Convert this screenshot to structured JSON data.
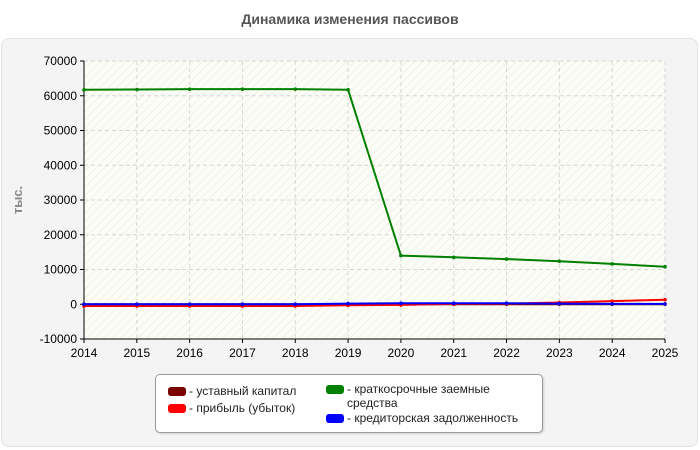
{
  "chart_data": {
    "type": "line",
    "title": "Динамика изменения пассивов",
    "ylabel": "тыс.",
    "xlabel": "",
    "x": [
      2014,
      2015,
      2016,
      2017,
      2018,
      2019,
      2020,
      2021,
      2022,
      2023,
      2024,
      2025
    ],
    "xlim": [
      2014,
      2025
    ],
    "ylim": [
      -10000,
      70000
    ],
    "yticks": [
      -10000,
      0,
      10000,
      20000,
      30000,
      40000,
      50000,
      60000,
      70000
    ],
    "grid": true,
    "legend_position": "bottom",
    "series": [
      {
        "name": "уставный капитал",
        "color": "#7a0000",
        "values": [
          10,
          10,
          10,
          10,
          10,
          10,
          10,
          10,
          10,
          10,
          10,
          10
        ]
      },
      {
        "name": "прибыль (убыток)",
        "color": "#ff0000",
        "values": [
          -500,
          -500,
          -500,
          -500,
          -500,
          -300,
          -200,
          100,
          200,
          500,
          900,
          1300
        ]
      },
      {
        "name": "краткосрочные заемные средства",
        "color": "#008000",
        "values": [
          61700,
          61800,
          61900,
          61900,
          61900,
          61700,
          14000,
          13500,
          13000,
          12400,
          11600,
          10800
        ]
      },
      {
        "name": "кредиторская задолженность",
        "color": "#0000ff",
        "values": [
          0,
          0,
          0,
          0,
          0,
          200,
          300,
          300,
          300,
          200,
          100,
          100
        ]
      }
    ]
  }
}
